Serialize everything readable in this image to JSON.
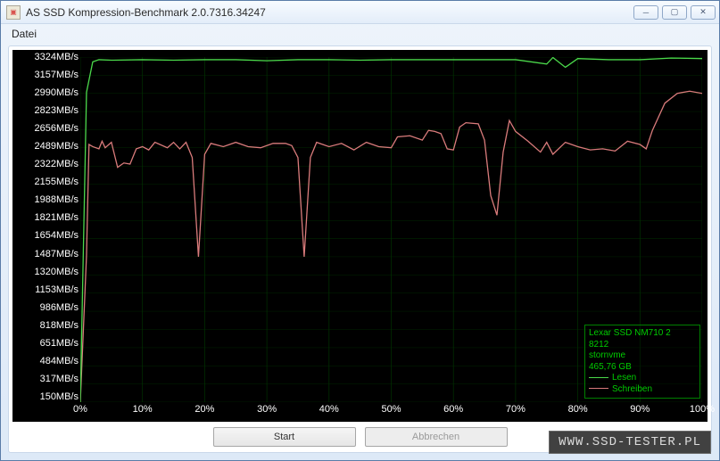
{
  "window": {
    "title": "AS SSD Kompression-Benchmark 2.0.7316.34247"
  },
  "menu": {
    "file": "Datei"
  },
  "chart": {
    "type": "line",
    "background_color": "#000000",
    "grid_color": "#003300",
    "axis_text_color": "#ffffff",
    "axis_fontsize": 11,
    "y_unit": "MB/s",
    "y_ticks": [
      3324,
      3157,
      2990,
      2823,
      2656,
      2489,
      2322,
      2155,
      1988,
      1821,
      1654,
      1487,
      1320,
      1153,
      986,
      818,
      651,
      484,
      317,
      150
    ],
    "ylim": [
      150,
      3324
    ],
    "x_unit": "%",
    "x_ticks": [
      0,
      10,
      20,
      30,
      40,
      50,
      60,
      70,
      80,
      90,
      100
    ],
    "xlim": [
      0,
      100
    ],
    "series": {
      "read": {
        "label": "Lesen",
        "color": "#4bd94b",
        "line_width": 1.3,
        "data": [
          [
            0,
            150
          ],
          [
            1,
            3000
          ],
          [
            2,
            3280
          ],
          [
            3,
            3300
          ],
          [
            5,
            3295
          ],
          [
            10,
            3300
          ],
          [
            15,
            3295
          ],
          [
            20,
            3300
          ],
          [
            25,
            3300
          ],
          [
            30,
            3290
          ],
          [
            35,
            3300
          ],
          [
            40,
            3300
          ],
          [
            45,
            3295
          ],
          [
            50,
            3300
          ],
          [
            55,
            3300
          ],
          [
            60,
            3300
          ],
          [
            65,
            3300
          ],
          [
            70,
            3300
          ],
          [
            75,
            3260
          ],
          [
            76,
            3320
          ],
          [
            78,
            3230
          ],
          [
            80,
            3310
          ],
          [
            85,
            3300
          ],
          [
            90,
            3300
          ],
          [
            95,
            3315
          ],
          [
            100,
            3310
          ]
        ]
      },
      "write": {
        "label": "Schreiben",
        "color": "#d97b7b",
        "line_width": 1.3,
        "data": [
          [
            0,
            150
          ],
          [
            1,
            1500
          ],
          [
            1.4,
            2520
          ],
          [
            2,
            2500
          ],
          [
            3,
            2480
          ],
          [
            3.5,
            2550
          ],
          [
            4,
            2490
          ],
          [
            5,
            2540
          ],
          [
            6,
            2310
          ],
          [
            7,
            2350
          ],
          [
            8,
            2340
          ],
          [
            9,
            2480
          ],
          [
            10,
            2500
          ],
          [
            11,
            2470
          ],
          [
            12,
            2540
          ],
          [
            14,
            2490
          ],
          [
            15,
            2540
          ],
          [
            16,
            2480
          ],
          [
            17,
            2540
          ],
          [
            18,
            2400
          ],
          [
            19,
            1487
          ],
          [
            20,
            2430
          ],
          [
            21,
            2530
          ],
          [
            23,
            2500
          ],
          [
            25,
            2540
          ],
          [
            27,
            2500
          ],
          [
            29,
            2490
          ],
          [
            31,
            2530
          ],
          [
            33,
            2530
          ],
          [
            34,
            2510
          ],
          [
            35,
            2400
          ],
          [
            36,
            1487
          ],
          [
            37,
            2400
          ],
          [
            38,
            2540
          ],
          [
            40,
            2500
          ],
          [
            42,
            2530
          ],
          [
            44,
            2470
          ],
          [
            46,
            2540
          ],
          [
            48,
            2500
          ],
          [
            50,
            2490
          ],
          [
            51,
            2590
          ],
          [
            53,
            2600
          ],
          [
            55,
            2560
          ],
          [
            56,
            2650
          ],
          [
            57,
            2640
          ],
          [
            58,
            2620
          ],
          [
            59,
            2480
          ],
          [
            60,
            2470
          ],
          [
            61,
            2680
          ],
          [
            62,
            2720
          ],
          [
            64,
            2710
          ],
          [
            65,
            2560
          ],
          [
            66,
            2050
          ],
          [
            67,
            1870
          ],
          [
            68,
            2450
          ],
          [
            69,
            2740
          ],
          [
            70,
            2640
          ],
          [
            72,
            2550
          ],
          [
            74,
            2450
          ],
          [
            75,
            2540
          ],
          [
            76,
            2430
          ],
          [
            78,
            2540
          ],
          [
            80,
            2500
          ],
          [
            82,
            2470
          ],
          [
            84,
            2480
          ],
          [
            86,
            2460
          ],
          [
            88,
            2550
          ],
          [
            90,
            2520
          ],
          [
            91,
            2480
          ],
          [
            92,
            2650
          ],
          [
            94,
            2900
          ],
          [
            96,
            2990
          ],
          [
            98,
            3010
          ],
          [
            100,
            2990
          ]
        ]
      }
    }
  },
  "legend": {
    "border_color": "#008000",
    "text_color": "#00cc00",
    "device_lines": [
      "Lexar SSD NM710 2",
      "8212",
      "stornvme",
      "465,76 GB"
    ]
  },
  "buttons": {
    "start": "Start",
    "cancel": "Abbrechen"
  },
  "watermark": "www.ssd-tester.pl"
}
